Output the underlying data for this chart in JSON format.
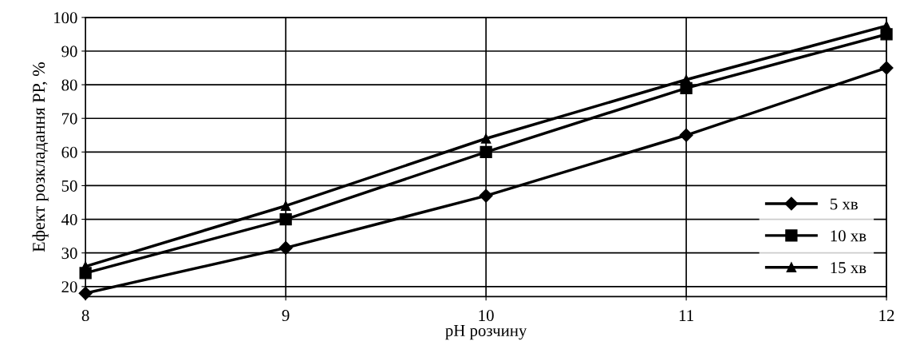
{
  "chart_data": {
    "type": "line",
    "xlabel": "pH розчину",
    "ylabel": "Ефект розкладання РР, %",
    "x": [
      8,
      9,
      10,
      11,
      12
    ],
    "series": [
      {
        "name": "5 хв",
        "color": "#000000",
        "values": [
          18,
          31.5,
          47,
          65,
          85
        ],
        "marker": "diamond"
      },
      {
        "name": "10 хв",
        "color": "#000000",
        "values": [
          24,
          40,
          60,
          79,
          95
        ],
        "marker": "square"
      },
      {
        "name": "15 хв",
        "color": "#000000",
        "values": [
          26,
          44,
          64,
          81.5,
          97.5
        ],
        "marker": "triangle"
      }
    ],
    "xlim": [
      8,
      12
    ],
    "xticks": [
      8,
      9,
      10,
      11,
      12
    ],
    "ylim": [
      17,
      100
    ],
    "yticks": [
      20,
      30,
      40,
      50,
      60,
      70,
      80,
      90,
      100
    ],
    "grid": true,
    "legend": "bottom right",
    "line_style": "solid"
  }
}
